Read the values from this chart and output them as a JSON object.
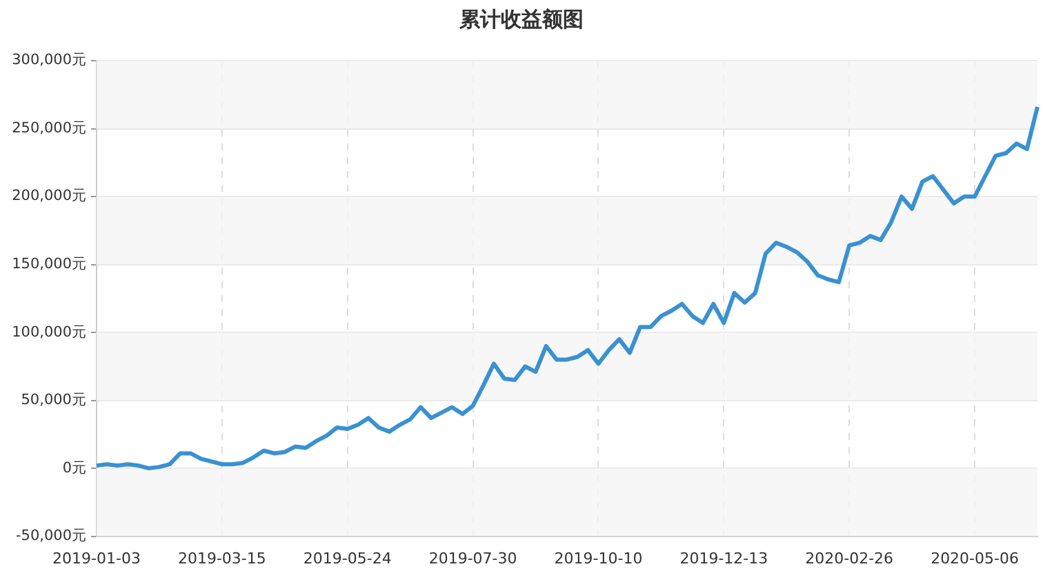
{
  "chart_data": {
    "type": "line",
    "title": "累计收益额图",
    "categories": [
      "2019-01-03",
      null,
      null,
      null,
      null,
      null,
      null,
      null,
      null,
      null,
      null,
      null,
      "2019-03-15",
      null,
      null,
      null,
      null,
      null,
      null,
      null,
      null,
      null,
      null,
      null,
      "2019-05-24",
      null,
      null,
      null,
      null,
      null,
      null,
      null,
      null,
      null,
      null,
      null,
      "2019-07-30",
      null,
      null,
      null,
      null,
      null,
      null,
      null,
      null,
      null,
      null,
      null,
      "2019-10-10",
      null,
      null,
      null,
      null,
      null,
      null,
      null,
      null,
      null,
      null,
      null,
      "2019-12-13",
      null,
      null,
      null,
      null,
      null,
      null,
      null,
      null,
      null,
      null,
      null,
      "2020-02-26",
      null,
      null,
      null,
      null,
      null,
      null,
      null,
      null,
      null,
      null,
      null,
      "2020-05-06",
      null,
      null,
      null,
      null,
      null,
      null
    ],
    "series": [
      {
        "color": "#3a91d0",
        "values": [
          2000,
          3000,
          2000,
          3000,
          2000,
          0,
          1000,
          3000,
          11000,
          11000,
          7000,
          5000,
          3000,
          3000,
          4000,
          8000,
          13000,
          11000,
          12000,
          16000,
          15000,
          20000,
          24000,
          30000,
          29000,
          32000,
          37000,
          30000,
          27000,
          32000,
          36000,
          45000,
          37000,
          41000,
          45000,
          40000,
          46000,
          61000,
          77000,
          66000,
          65000,
          75000,
          71000,
          90000,
          80000,
          80000,
          82000,
          87000,
          77000,
          87000,
          95000,
          85000,
          104000,
          104000,
          112000,
          116000,
          121000,
          112000,
          107000,
          121000,
          107000,
          129000,
          122000,
          129000,
          158000,
          166000,
          163000,
          159000,
          152000,
          142000,
          139000,
          137000,
          164000,
          166000,
          171000,
          168000,
          181000,
          200000,
          191000,
          211000,
          215000,
          205000,
          195000,
          200000,
          200000,
          215000,
          230000,
          232000,
          239000,
          235000,
          266000
        ]
      }
    ],
    "ylim": [
      -50000,
      300000
    ],
    "yticks": [
      {
        "value": -50000,
        "label": "-50,000元"
      },
      {
        "value": 0,
        "label": "0元"
      },
      {
        "value": 50000,
        "label": "50,000元"
      },
      {
        "value": 100000,
        "label": "100,000元"
      },
      {
        "value": 150000,
        "label": "150,000元"
      },
      {
        "value": 200000,
        "label": "200,000元"
      },
      {
        "value": 250000,
        "label": "250,000元"
      },
      {
        "value": 300000,
        "label": "300,000元"
      }
    ],
    "grid": true,
    "legend": false,
    "marker": "none",
    "line_style": "solid"
  }
}
